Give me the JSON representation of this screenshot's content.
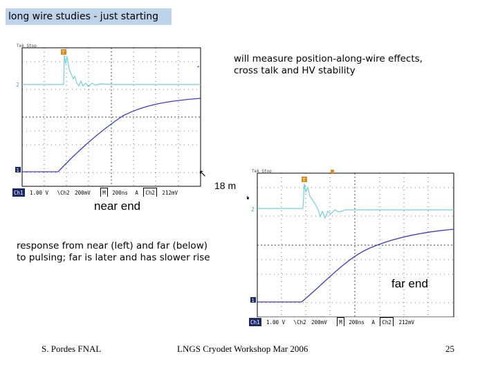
{
  "slide": {
    "title": "long wire studies - just starting",
    "note_top_line1": "will measure position-along-wire effects,",
    "note_top_line2": "cross talk and HV stability",
    "distance_label": "18 m",
    "near_label": "near end",
    "far_label": "far end",
    "note_mid_line1": "response from near (left) and far (below)",
    "note_mid_line2": "to pulsing; far is later and has slower rise",
    "footer_left": "S. Pordes FNAL",
    "footer_center": "LNGS Cryodet Workshop Mar 2006",
    "footer_right": "25"
  },
  "scope_near": {
    "status": {
      "ch1": "Ch1",
      "ch1_scale": "1.00 V",
      "ch2_label": "\\Ch2",
      "ch2_scale": "200mV",
      "m": "M",
      "time": "200ns",
      "a": "A",
      "trig_ch": "Ch2",
      "trig_level": "212mV"
    },
    "header": "Tek Stop",
    "marker_2": "2",
    "marker_1": "1",
    "marker_T": "T"
  },
  "scope_far": {
    "status": {
      "ch1": "Ch1",
      "ch1_scale": "1.00 V",
      "ch2_label": "\\Ch2",
      "ch2_scale": "200mV",
      "m": "M",
      "time": "200ns",
      "a": "A",
      "trig_ch": "Ch2",
      "trig_level": "212mV"
    },
    "header": "Tek Stop",
    "marker_2": "2",
    "marker_1": "1",
    "marker_T": "T"
  },
  "colors": {
    "title_bg": "#bcd3ea",
    "blue_trace": "#3a3acc",
    "cyan_trace": "#6fd0dc",
    "marker_orange": "#e08a1a"
  }
}
